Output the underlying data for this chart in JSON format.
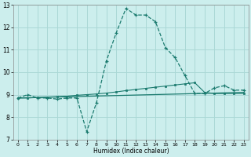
{
  "xlabel": "Humidex (Indice chaleur)",
  "background_color": "#cceeed",
  "grid_color": "#aad8d6",
  "line_color": "#1a7a6e",
  "xlim": [
    -0.5,
    23.5
  ],
  "ylim": [
    7,
    13
  ],
  "xticks": [
    0,
    1,
    2,
    3,
    4,
    5,
    6,
    7,
    8,
    9,
    10,
    11,
    12,
    13,
    14,
    15,
    16,
    17,
    18,
    19,
    20,
    21,
    22,
    23
  ],
  "yticks": [
    7,
    8,
    9,
    10,
    11,
    12,
    13
  ],
  "line1_x": [
    0,
    1,
    2,
    3,
    4,
    5,
    6,
    7,
    8,
    9,
    10,
    11,
    12,
    13,
    14,
    15,
    16,
    17,
    18,
    19,
    20,
    21,
    22,
    23
  ],
  "line1_y": [
    8.85,
    9.0,
    8.85,
    8.85,
    8.8,
    8.85,
    8.85,
    7.35,
    8.65,
    10.5,
    11.75,
    12.85,
    12.55,
    12.55,
    12.25,
    11.1,
    10.65,
    9.85,
    9.05,
    9.05,
    9.3,
    9.4,
    9.2,
    9.2
  ],
  "line2_x": [
    0,
    1,
    2,
    3,
    4,
    5,
    6,
    7,
    8,
    9,
    10,
    11,
    12,
    13,
    14,
    15,
    16,
    17,
    18,
    19,
    20,
    21,
    22,
    23
  ],
  "line2_y": [
    8.85,
    8.85,
    8.87,
    8.89,
    8.91,
    8.93,
    8.97,
    9.0,
    9.03,
    9.07,
    9.12,
    9.18,
    9.23,
    9.28,
    9.33,
    9.38,
    9.43,
    9.48,
    9.53,
    9.1,
    9.05,
    9.05,
    9.05,
    9.05
  ],
  "line3_x": [
    0,
    23
  ],
  "line3_y": [
    8.85,
    9.1
  ]
}
